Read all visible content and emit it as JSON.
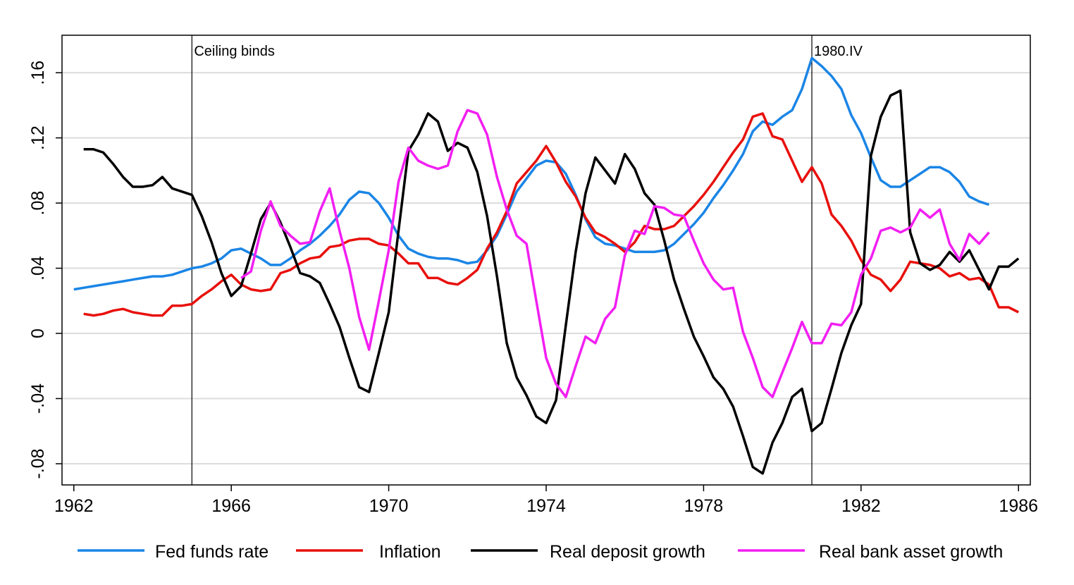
{
  "chart_data": {
    "type": "line",
    "x": [
      1962,
      1962.25,
      1962.5,
      1962.75,
      1963,
      1963.25,
      1963.5,
      1963.75,
      1964,
      1964.25,
      1964.5,
      1964.75,
      1965,
      1965.25,
      1965.5,
      1965.75,
      1966,
      1966.25,
      1966.5,
      1966.75,
      1967,
      1967.25,
      1967.5,
      1967.75,
      1968,
      1968.25,
      1968.5,
      1968.75,
      1969,
      1969.25,
      1969.5,
      1969.75,
      1970,
      1970.25,
      1970.5,
      1970.75,
      1971,
      1971.25,
      1971.5,
      1971.75,
      1972,
      1972.25,
      1972.5,
      1972.75,
      1973,
      1973.25,
      1973.5,
      1973.75,
      1974,
      1974.25,
      1974.5,
      1974.75,
      1975,
      1975.25,
      1975.5,
      1975.75,
      1976,
      1976.25,
      1976.5,
      1976.75,
      1977,
      1977.25,
      1977.5,
      1977.75,
      1978,
      1978.25,
      1978.5,
      1978.75,
      1979,
      1979.25,
      1979.5,
      1979.75,
      1980,
      1980.25,
      1980.5,
      1980.75,
      1981,
      1981.25,
      1981.5,
      1981.75,
      1982,
      1982.25,
      1982.5,
      1982.75,
      1983,
      1983.25,
      1983.5,
      1983.75,
      1984,
      1984.25,
      1984.5,
      1984.75,
      1985,
      1985.25,
      1985.5,
      1985.75,
      1986
    ],
    "series": [
      {
        "name": "Fed funds rate",
        "color": "#1a85e6",
        "values": [
          0.027,
          0.028,
          0.029,
          0.03,
          0.031,
          0.032,
          0.033,
          0.034,
          0.035,
          0.035,
          0.036,
          0.038,
          0.04,
          0.041,
          0.043,
          0.046,
          0.051,
          0.052,
          0.049,
          0.046,
          0.042,
          0.042,
          0.046,
          0.051,
          0.055,
          0.06,
          0.066,
          0.073,
          0.082,
          0.087,
          0.086,
          0.08,
          0.071,
          0.06,
          0.052,
          0.049,
          0.047,
          0.046,
          0.046,
          0.045,
          0.043,
          0.044,
          0.051,
          0.06,
          0.073,
          0.087,
          0.095,
          0.103,
          0.106,
          0.105,
          0.098,
          0.085,
          0.07,
          0.059,
          0.055,
          0.054,
          0.052,
          0.05,
          0.05,
          0.05,
          0.051,
          0.055,
          0.061,
          0.067,
          0.074,
          0.083,
          0.091,
          0.1,
          0.11,
          0.124,
          0.13,
          0.128,
          0.133,
          0.137,
          0.15,
          0.169,
          0.164,
          0.158,
          0.15,
          0.134,
          0.123,
          0.108,
          0.094,
          0.09,
          0.09,
          0.094,
          0.098,
          0.102,
          0.102,
          0.099,
          0.093,
          0.084,
          0.081,
          0.079,
          null,
          null,
          null
        ]
      },
      {
        "name": "Inflation",
        "color": "#e8100c",
        "values": [
          null,
          0.012,
          0.011,
          0.012,
          0.014,
          0.015,
          0.013,
          0.012,
          0.011,
          0.011,
          0.017,
          0.017,
          0.018,
          0.023,
          0.027,
          0.032,
          0.036,
          0.03,
          0.027,
          0.026,
          0.027,
          0.037,
          0.039,
          0.043,
          0.046,
          0.047,
          0.053,
          0.054,
          0.057,
          0.058,
          0.058,
          0.055,
          0.054,
          0.049,
          0.043,
          0.043,
          0.034,
          0.034,
          0.031,
          0.03,
          0.034,
          0.039,
          0.052,
          0.062,
          0.075,
          0.092,
          0.099,
          0.106,
          0.115,
          0.105,
          0.093,
          0.084,
          0.071,
          0.062,
          0.059,
          0.055,
          0.05,
          0.056,
          0.066,
          0.064,
          0.064,
          0.066,
          0.072,
          0.078,
          0.085,
          0.093,
          0.102,
          0.111,
          0.119,
          0.133,
          0.135,
          0.121,
          0.119,
          0.106,
          0.093,
          0.102,
          0.092,
          0.073,
          0.066,
          0.057,
          0.045,
          0.036,
          0.033,
          0.026,
          0.033,
          0.044,
          0.043,
          0.042,
          0.04,
          0.035,
          0.037,
          0.033,
          0.034,
          0.03,
          0.016,
          0.016,
          0.013
        ]
      },
      {
        "name": "Real deposit growth",
        "color": "#000000",
        "values": [
          null,
          0.113,
          0.113,
          0.111,
          0.104,
          0.096,
          0.09,
          0.09,
          0.091,
          0.096,
          0.089,
          0.087,
          0.085,
          0.072,
          0.056,
          0.037,
          0.023,
          0.029,
          0.049,
          0.07,
          0.08,
          0.068,
          0.053,
          0.037,
          0.035,
          0.031,
          0.018,
          0.004,
          -0.015,
          -0.033,
          -0.036,
          -0.012,
          0.013,
          0.063,
          0.112,
          0.122,
          0.135,
          0.13,
          0.112,
          0.117,
          0.114,
          0.099,
          0.072,
          0.035,
          -0.006,
          -0.027,
          -0.038,
          -0.051,
          -0.055,
          -0.041,
          0.005,
          0.05,
          0.086,
          0.108,
          0.1,
          0.092,
          0.11,
          0.101,
          0.086,
          0.079,
          0.057,
          0.033,
          0.015,
          -0.002,
          -0.014,
          -0.027,
          -0.034,
          -0.045,
          -0.063,
          -0.082,
          -0.086,
          -0.067,
          -0.055,
          -0.039,
          -0.034,
          -0.06,
          -0.055,
          -0.034,
          -0.012,
          0.005,
          0.018,
          0.109,
          0.133,
          0.146,
          0.149,
          0.062,
          0.043,
          0.039,
          0.042,
          0.05,
          0.044,
          0.051,
          0.039,
          0.027,
          0.041,
          0.041,
          0.046
        ]
      },
      {
        "name": "Real bank asset growth",
        "color": "#f21ff2",
        "values": [
          null,
          null,
          null,
          null,
          null,
          null,
          null,
          null,
          null,
          null,
          null,
          null,
          null,
          null,
          null,
          null,
          null,
          0.034,
          0.038,
          0.063,
          0.081,
          0.066,
          0.06,
          0.055,
          0.056,
          0.075,
          0.089,
          0.063,
          0.04,
          0.01,
          -0.01,
          0.02,
          0.051,
          0.093,
          0.114,
          0.106,
          0.103,
          0.101,
          0.103,
          0.124,
          0.137,
          0.135,
          0.122,
          0.096,
          0.076,
          0.06,
          0.055,
          0.02,
          -0.015,
          -0.031,
          -0.039,
          -0.02,
          -0.002,
          -0.006,
          0.009,
          0.016,
          0.048,
          0.063,
          0.061,
          0.078,
          0.077,
          0.073,
          0.072,
          0.057,
          0.043,
          0.033,
          0.027,
          0.028,
          0.001,
          -0.015,
          -0.033,
          -0.039,
          -0.024,
          -0.009,
          0.007,
          -0.006,
          -0.006,
          0.006,
          0.005,
          0.013,
          0.036,
          0.046,
          0.063,
          0.065,
          0.062,
          0.065,
          0.076,
          0.071,
          0.076,
          0.055,
          0.045,
          0.061,
          0.055,
          0.062,
          null,
          null,
          null
        ]
      }
    ],
    "xlim": [
      1961.7,
      1986.3
    ],
    "xticks": [
      1962,
      1966,
      1970,
      1974,
      1978,
      1982,
      1986
    ],
    "ylim": [
      -0.093,
      0.183
    ],
    "yticks": [
      {
        "value": -0.08,
        "label": "-.08"
      },
      {
        "value": -0.04,
        "label": "-.04"
      },
      0,
      {
        "value": 0.04,
        "label": ".04"
      },
      {
        "value": 0.08,
        "label": ".08"
      },
      {
        "value": 0.12,
        "label": ".12"
      },
      {
        "value": 0.16,
        "label": ".16"
      }
    ],
    "grid": true,
    "legend": "bottom",
    "annotations": [
      {
        "x": 1965,
        "text": "Ceiling binds"
      },
      {
        "x": 1980.75,
        "text": "1980.IV"
      }
    ]
  }
}
